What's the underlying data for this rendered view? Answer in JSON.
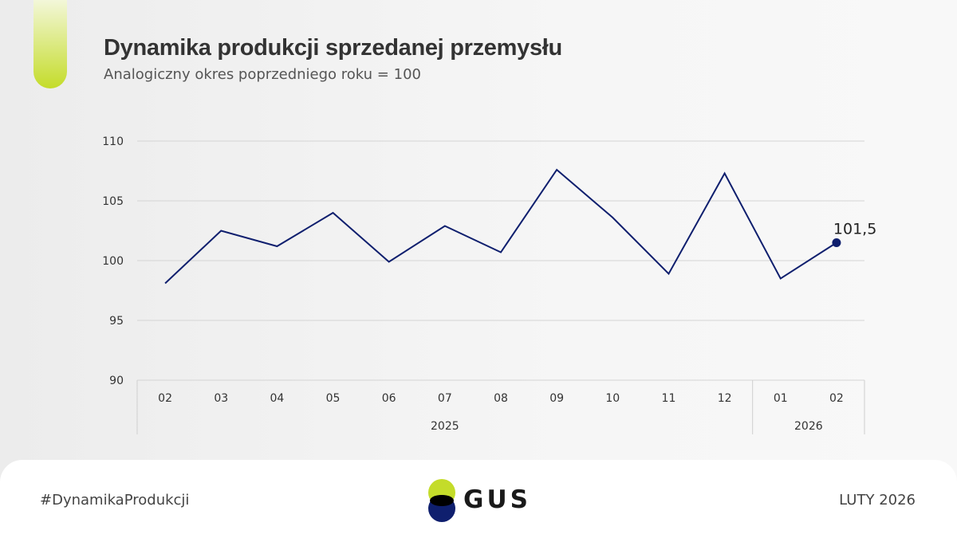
{
  "header": {
    "title": "Dynamika produkcji sprzedanej przemysłu",
    "subtitle": "Analogiczny okres poprzedniego roku = 100"
  },
  "chart_data": {
    "type": "line",
    "title": "Dynamika produkcji sprzedanej przemysłu",
    "subtitle": "Analogiczny okres poprzedniego roku = 100",
    "categories": [
      "02",
      "03",
      "04",
      "05",
      "06",
      "07",
      "08",
      "09",
      "10",
      "11",
      "12",
      "01",
      "02"
    ],
    "year_groups": [
      {
        "label": "2025",
        "count": 11
      },
      {
        "label": "2026",
        "count": 2
      }
    ],
    "series": [
      {
        "name": "Dynamika produkcji sprzedanej przemysłu",
        "values": [
          98.1,
          102.5,
          101.2,
          104.0,
          99.9,
          102.9,
          100.7,
          107.6,
          103.6,
          98.9,
          107.3,
          98.5,
          101.5
        ],
        "color": "#0f1f6e"
      }
    ],
    "ylim": [
      90,
      110
    ],
    "yticks": [
      90,
      95,
      100,
      105,
      110
    ],
    "last_point_label": "101,5",
    "grid": true,
    "xlabel": "",
    "ylabel": ""
  },
  "footer": {
    "hashtag": "#DynamikaProdukcji",
    "logo_text": "GUS",
    "date": "LUTY 2026"
  },
  "colors": {
    "line": "#0f1f6e",
    "accent": "#c4dc2a",
    "logo_green": "#c4dc2a",
    "logo_navy": "#0f1f6e"
  }
}
